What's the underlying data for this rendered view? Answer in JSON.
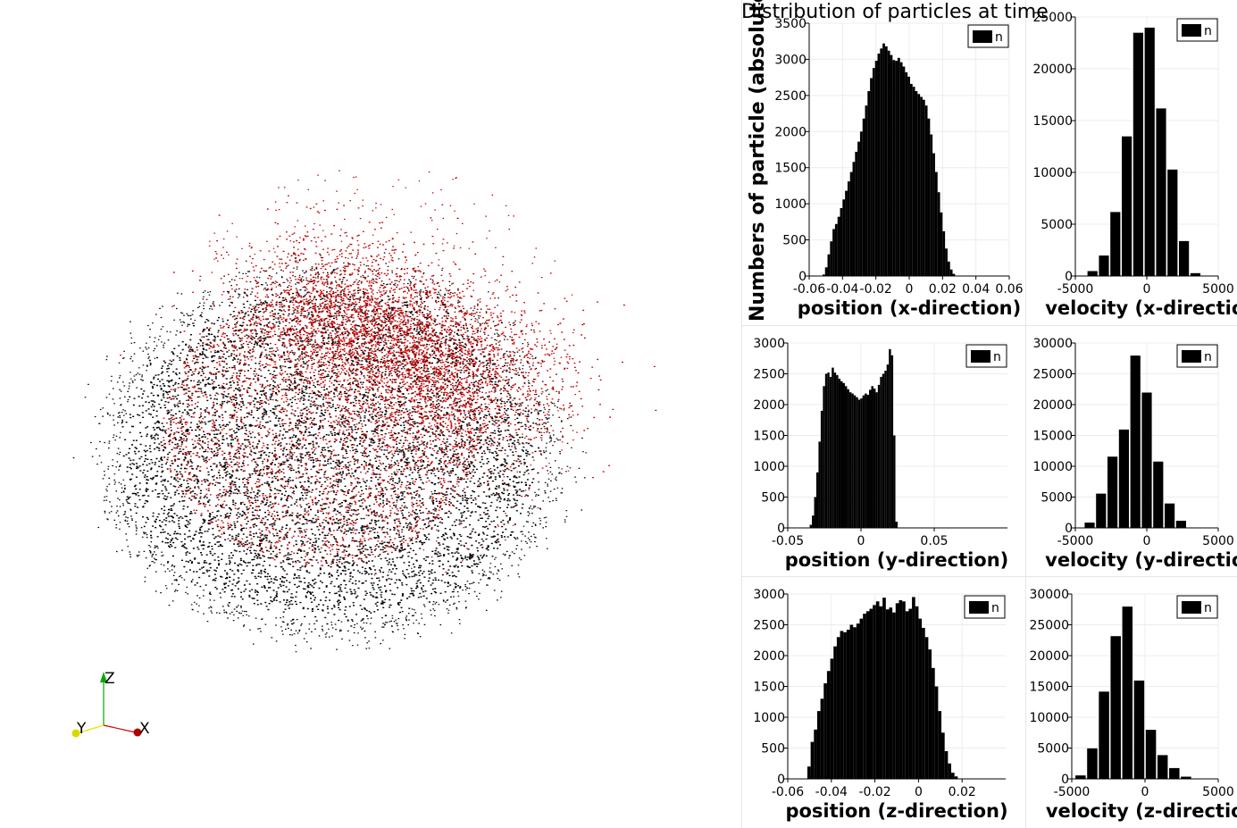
{
  "view3d": {
    "axes": {
      "x_label": "X",
      "y_label": "Y",
      "z_label": "Z"
    },
    "colors": {
      "black_particles": "#000000",
      "red_particles": "#c00000",
      "axis_x": "#cc0000",
      "axis_y": "#e6e600",
      "axis_z": "#00aa00"
    }
  },
  "figure": {
    "suptitle": "Distribution of particles at time",
    "ylabel": "Numbers of particle (absolute number)"
  },
  "chart_data": [
    {
      "type": "bar",
      "id": "pos-x",
      "xlabel": "position (x-direction)",
      "xlim": [
        -0.06,
        0.06
      ],
      "ylim": [
        0,
        3500
      ],
      "xticks": [
        -0.06,
        -0.04,
        -0.02,
        0,
        0.02,
        0.04,
        0.06
      ],
      "xtick_labels": [
        "-0.06",
        "-0.04",
        "-0.02",
        "0",
        "0.02",
        "0.04",
        "0.06"
      ],
      "yticks": [
        0,
        500,
        1000,
        1500,
        2000,
        2500,
        3000,
        3500
      ],
      "legend": "n",
      "legend_position": "top-right",
      "bin_start": -0.052,
      "bin_width": 0.0015,
      "values": [
        20,
        120,
        300,
        480,
        650,
        720,
        820,
        940,
        1060,
        1180,
        1310,
        1440,
        1580,
        1720,
        1860,
        2000,
        2180,
        2360,
        2560,
        2740,
        2880,
        2980,
        3080,
        3150,
        3220,
        3180,
        3120,
        3060,
        2990,
        2980,
        3020,
        2960,
        2900,
        2820,
        2760,
        2660,
        2620,
        2560,
        2520,
        2480,
        2440,
        2360,
        2180,
        1960,
        1700,
        1440,
        1160,
        880,
        620,
        380,
        200,
        90,
        30,
        5
      ]
    },
    {
      "type": "bar",
      "id": "vel-x",
      "xlabel": "velocity (x-direction)",
      "xlim": [
        -5000,
        5000
      ],
      "ylim": [
        0,
        25000
      ],
      "xticks": [
        -5000,
        0,
        5000
      ],
      "xtick_labels": [
        "-5000",
        "0",
        "5000"
      ],
      "yticks": [
        0,
        5000,
        10000,
        15000,
        20000,
        25000
      ],
      "legend": "n",
      "legend_position": "top-right",
      "bin_start": -4200,
      "bin_width": 800,
      "values": [
        500,
        2000,
        6200,
        13500,
        23500,
        24000,
        16200,
        10300,
        3400,
        300
      ]
    },
    {
      "type": "bar",
      "id": "pos-y",
      "xlabel": "position (y-direction)",
      "xlim": [
        -0.05,
        0.1
      ],
      "ylim": [
        0,
        3000
      ],
      "xticks": [
        -0.05,
        0,
        0.05
      ],
      "xtick_labels": [
        "-0.05",
        "0",
        "0.05"
      ],
      "yticks": [
        0,
        500,
        1000,
        1500,
        2000,
        2500,
        3000
      ],
      "legend": "n",
      "legend_position": "top-right",
      "bin_start": -0.035,
      "bin_width": 0.0015,
      "values": [
        50,
        200,
        500,
        900,
        1400,
        1900,
        2300,
        2500,
        2520,
        2450,
        2600,
        2520,
        2480,
        2420,
        2380,
        2350,
        2300,
        2250,
        2200,
        2180,
        2150,
        2120,
        2080,
        2100,
        2150,
        2180,
        2160,
        2240,
        2300,
        2260,
        2200,
        2320,
        2450,
        2500,
        2550,
        2650,
        2900,
        2800,
        1500,
        100
      ]
    },
    {
      "type": "bar",
      "id": "vel-y",
      "xlabel": "velocity (y-direction)",
      "xlim": [
        -5000,
        5000
      ],
      "ylim": [
        0,
        30000
      ],
      "xticks": [
        -5000,
        0,
        5000
      ],
      "xtick_labels": [
        "-5000",
        "0",
        "5000"
      ],
      "yticks": [
        0,
        5000,
        10000,
        15000,
        20000,
        25000,
        30000
      ],
      "legend": "n",
      "legend_position": "top-right",
      "bin_start": -4400,
      "bin_width": 800,
      "values": [
        900,
        5600,
        11600,
        16000,
        28000,
        22000,
        10800,
        4000,
        1200
      ]
    },
    {
      "type": "bar",
      "id": "pos-z",
      "xlabel": "position (z-direction)",
      "xlim": [
        -0.06,
        0.04
      ],
      "ylim": [
        0,
        3000
      ],
      "xticks": [
        -0.06,
        -0.04,
        -0.02,
        0,
        0.02
      ],
      "xtick_labels": [
        "-0.06",
        "-0.04",
        "-0.02",
        "0",
        "0.02"
      ],
      "yticks": [
        0,
        500,
        1000,
        1500,
        2000,
        2500,
        3000
      ],
      "legend": "n",
      "legend_position": "top-right",
      "bin_start": -0.051,
      "bin_width": 0.0015,
      "values": [
        200,
        600,
        800,
        1100,
        1300,
        1550,
        1750,
        1950,
        2150,
        2300,
        2400,
        2380,
        2420,
        2500,
        2460,
        2520,
        2600,
        2680,
        2720,
        2760,
        2820,
        2880,
        2800,
        2940,
        2750,
        2780,
        2700,
        2850,
        2900,
        2880,
        2720,
        2760,
        2950,
        2800,
        2600,
        2450,
        2300,
        2100,
        1800,
        1500,
        1100,
        750,
        450,
        250,
        100,
        40
      ]
    },
    {
      "type": "bar",
      "id": "vel-z",
      "xlabel": "velocity (z-direction)",
      "xlim": [
        -5000,
        5000
      ],
      "ylim": [
        0,
        30000
      ],
      "xticks": [
        -5000,
        0,
        5000
      ],
      "xtick_labels": [
        "-5000",
        "0",
        "5000"
      ],
      "yticks": [
        0,
        5000,
        10000,
        15000,
        20000,
        25000,
        30000
      ],
      "legend": "n",
      "legend_position": "top-right",
      "bin_start": -4800,
      "bin_width": 800,
      "values": [
        600,
        5000,
        14200,
        23200,
        28000,
        16000,
        8000,
        3900,
        1800,
        400
      ]
    }
  ]
}
